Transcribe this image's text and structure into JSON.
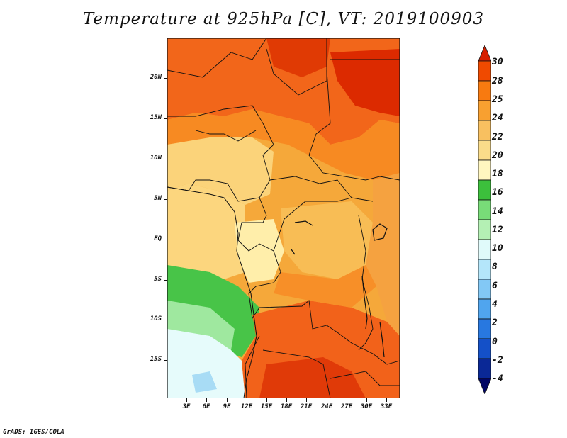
{
  "title": "Temperature at 925hPa [C], VT: 2019100903",
  "credit": "GrADS: IGES/COLA",
  "lat_labels": [
    "20N",
    "15N",
    "10N",
    "5N",
    "EQ",
    "5S",
    "10S",
    "15S"
  ],
  "lon_labels": [
    "3E",
    "6E",
    "9E",
    "12E",
    "15E",
    "18E",
    "21E",
    "24E",
    "27E",
    "30E",
    "33E"
  ],
  "colorbar": {
    "labels": [
      "30",
      "28",
      "25",
      "24",
      "22",
      "20",
      "18",
      "16",
      "14",
      "12",
      "10",
      "8",
      "6",
      "4",
      "2",
      "0",
      "-2",
      "-4"
    ],
    "colors": [
      "#d62000",
      "#f04a00",
      "#f87a10",
      "#f8a030",
      "#f8c060",
      "#fadc8a",
      "#fff6c0",
      "#3cc03c",
      "#78dc78",
      "#b4f0b4",
      "#e0fafa",
      "#b4e6fa",
      "#82c8f5",
      "#50a5ee",
      "#2878e0",
      "#1450c8",
      "#0a2896",
      "#000564"
    ]
  }
}
